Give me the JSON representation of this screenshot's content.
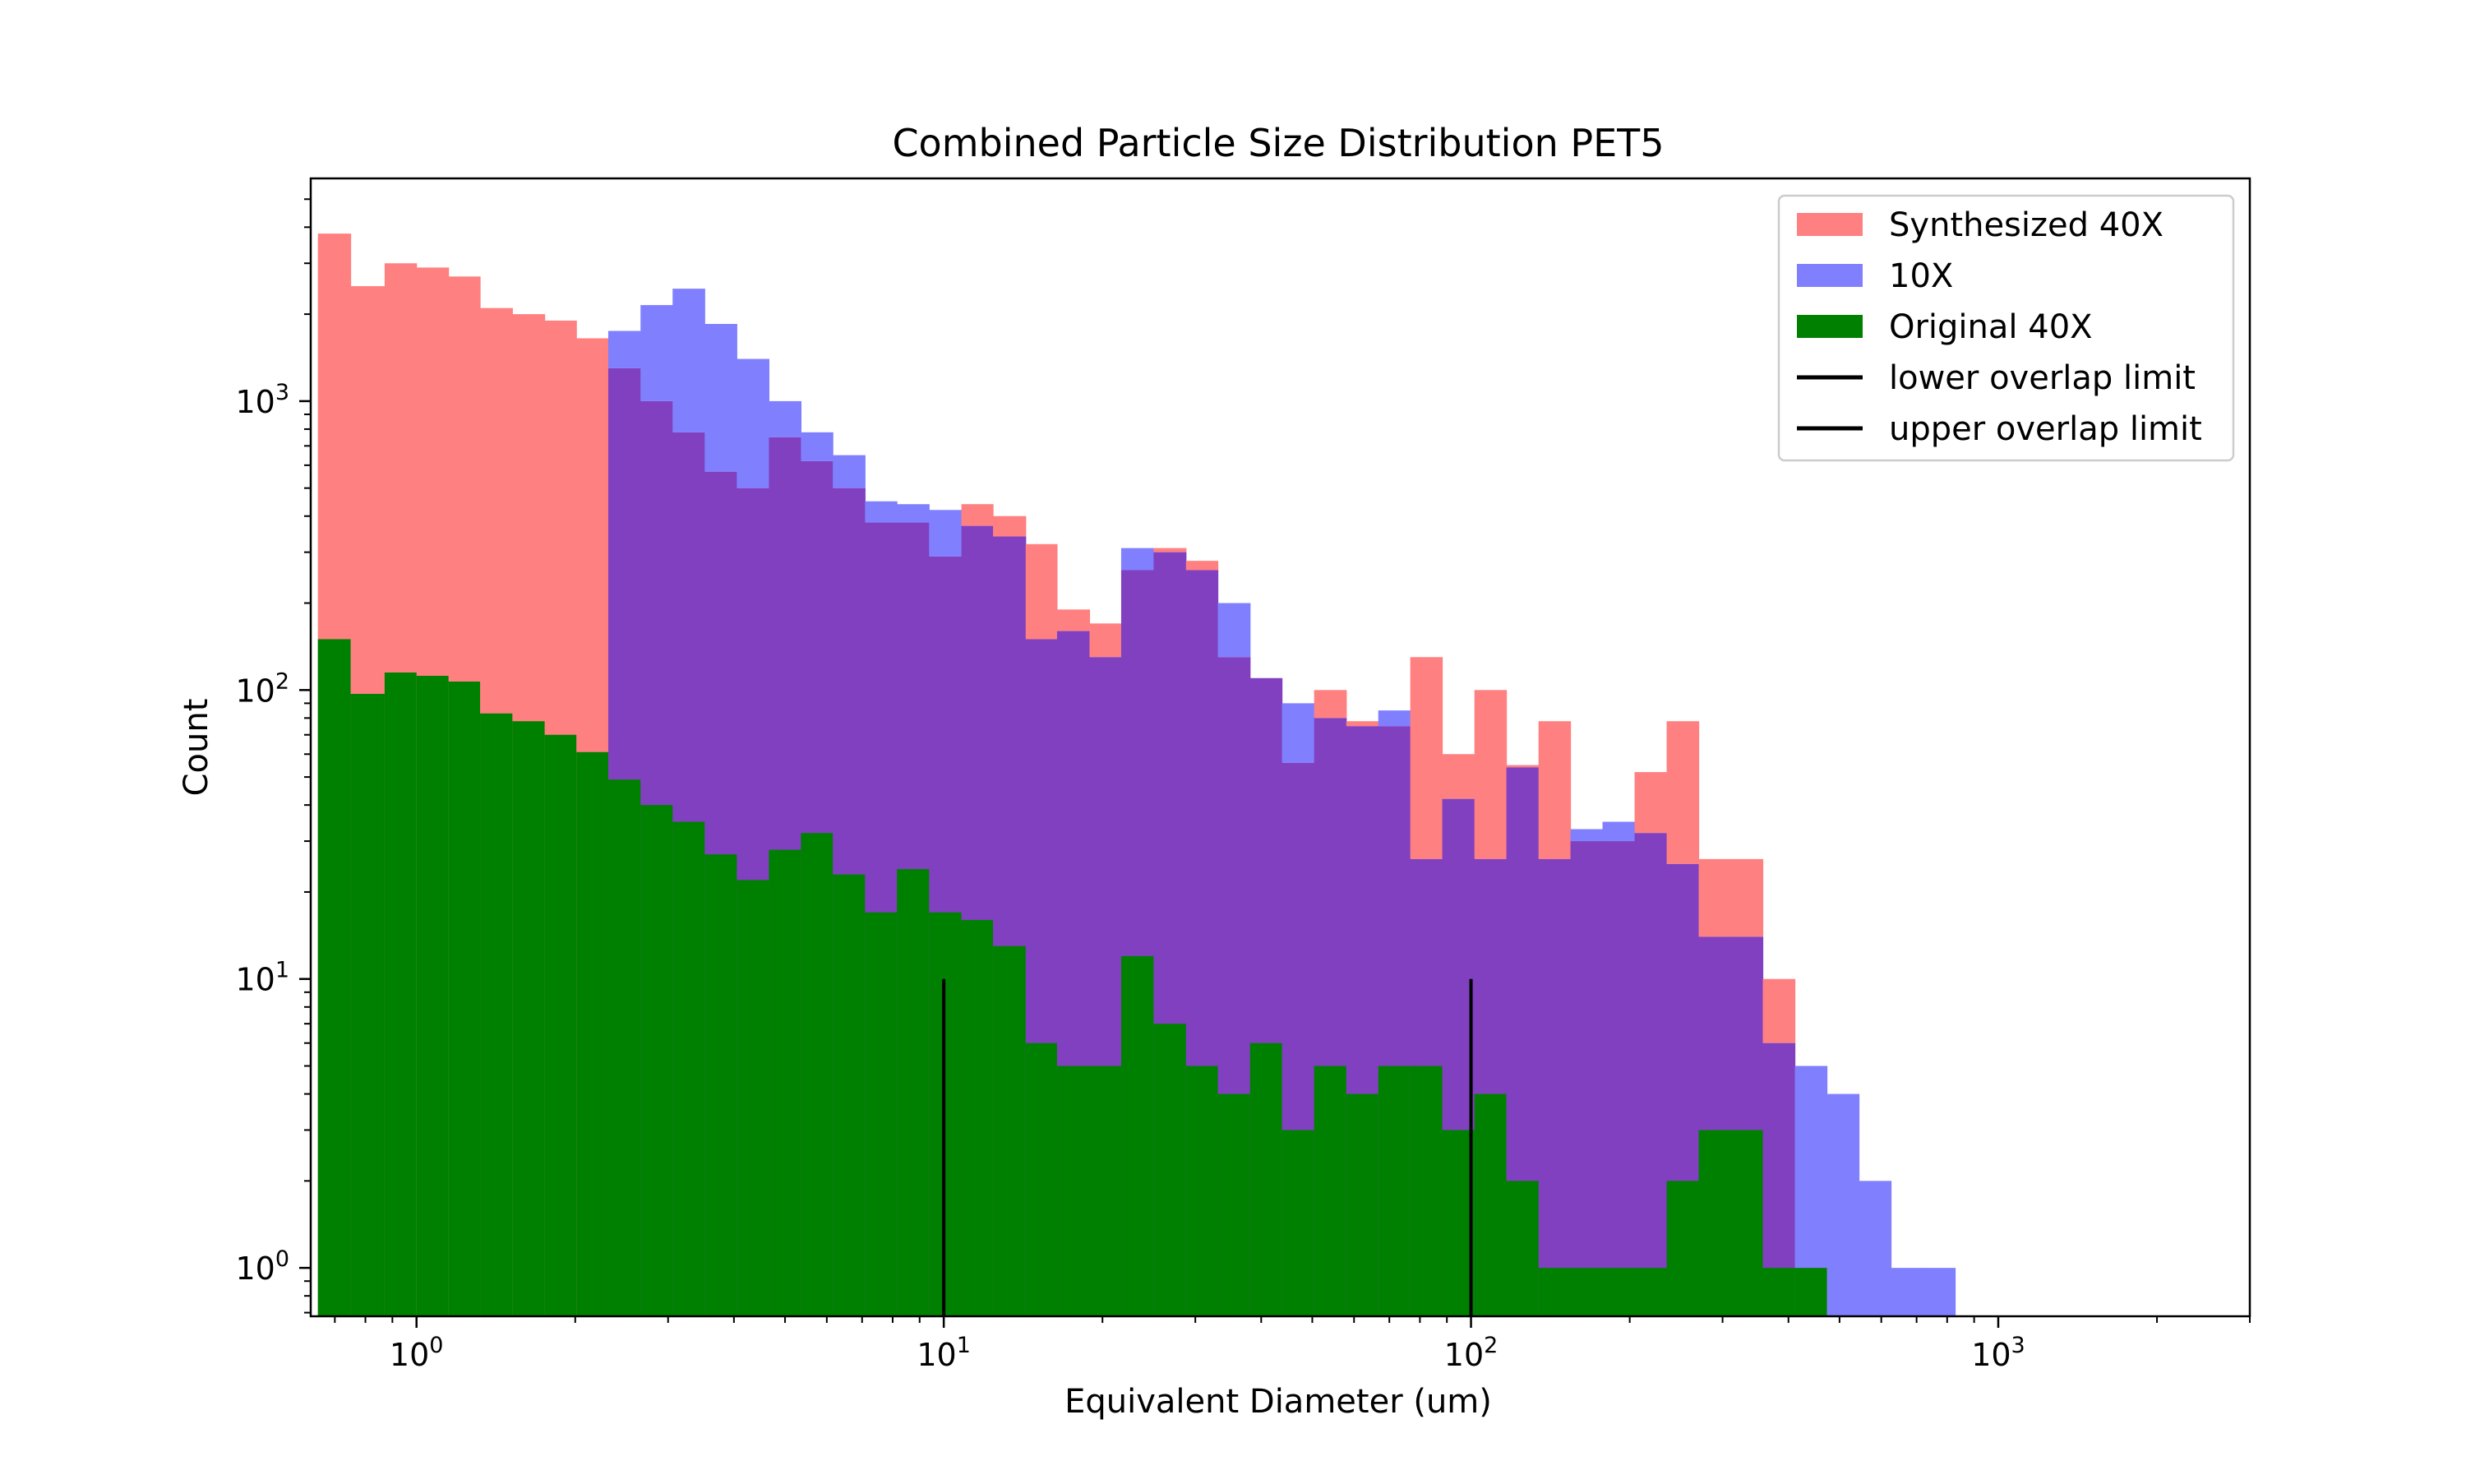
{
  "chart_data": {
    "type": "bar",
    "title": "Combined Particle Size Distribution PET5",
    "xlabel": "Equivalent Diameter (um)",
    "ylabel": "Count",
    "xscale": "log",
    "yscale": "log",
    "xlim": [
      0.63,
      3000
    ],
    "ylim": [
      0.68,
      5900
    ],
    "grid": false,
    "legend_position": "top-right",
    "x_ticks": [
      {
        "value": 1,
        "base": "10",
        "exp": "0"
      },
      {
        "value": 10,
        "base": "10",
        "exp": "1"
      },
      {
        "value": 100,
        "base": "10",
        "exp": "2"
      },
      {
        "value": 1000,
        "base": "10",
        "exp": "3"
      }
    ],
    "y_ticks": [
      {
        "value": 1,
        "base": "10",
        "exp": "0"
      },
      {
        "value": 10,
        "base": "10",
        "exp": "1"
      },
      {
        "value": 100,
        "base": "10",
        "exp": "2"
      },
      {
        "value": 1000,
        "base": "10",
        "exp": "3"
      }
    ],
    "bin_edges": [
      0.65,
      0.75,
      0.87,
      1.0,
      1.15,
      1.32,
      1.52,
      1.75,
      2.01,
      2.31,
      2.66,
      3.06,
      3.52,
      4.05,
      4.66,
      5.36,
      6.16,
      7.09,
      8.15,
      9.38,
      10.8,
      12.4,
      14.3,
      16.4,
      18.9,
      21.7,
      25.0,
      28.8,
      33.1,
      38.1,
      43.8,
      50.4,
      58.0,
      66.7,
      76.7,
      88.2,
      101.5,
      116.7,
      134.3,
      154.4,
      177.6,
      204.3,
      235.0,
      270.3,
      310.9,
      357.6,
      411.4,
      473.2,
      544.3,
      626.1,
      720.2,
      828.4,
      1000.0
    ],
    "series": [
      {
        "name": "Synthesized 40X",
        "color": "#ff8080",
        "values": [
          3800,
          2500,
          3000,
          2900,
          2700,
          2100,
          2000,
          1900,
          1650,
          1300,
          1000,
          780,
          570,
          500,
          750,
          620,
          500,
          380,
          380,
          290,
          440,
          400,
          320,
          190,
          170,
          260,
          310,
          280,
          130,
          110,
          56,
          100,
          78,
          75,
          130,
          60,
          100,
          55,
          78,
          30,
          30,
          52,
          78,
          26,
          26,
          10,
          0,
          0,
          0,
          0,
          0,
          0
        ]
      },
      {
        "name": "10X",
        "color": "#8080ff",
        "values": [
          0,
          0,
          0,
          0,
          0,
          0,
          0,
          0,
          0,
          1750,
          2150,
          2450,
          1850,
          1400,
          1000,
          780,
          650,
          450,
          440,
          420,
          370,
          340,
          150,
          160,
          130,
          310,
          300,
          260,
          200,
          110,
          90,
          80,
          75,
          85,
          26,
          42,
          26,
          54,
          26,
          33,
          35,
          32,
          25,
          14,
          14,
          6,
          5,
          4,
          2,
          1,
          1,
          0
        ]
      },
      {
        "name": "Original 40X",
        "color": "#008000",
        "values": [
          150,
          97,
          115,
          112,
          107,
          83,
          78,
          70,
          61,
          49,
          40,
          35,
          27,
          22,
          28,
          32,
          23,
          17,
          24,
          17,
          16,
          13,
          6,
          5,
          5,
          12,
          7,
          5,
          4,
          6,
          3,
          5,
          4,
          5,
          5,
          3,
          4,
          2,
          1,
          1,
          1,
          1,
          2,
          3,
          3,
          1,
          1,
          0,
          0,
          0,
          0,
          0
        ]
      }
    ],
    "overlay_color": "#8040c0",
    "vlines": [
      {
        "name": "lower overlap limit",
        "x": 10,
        "ymin": 0.68,
        "ymax": 10,
        "color": "#000000"
      },
      {
        "name": "upper overlap limit",
        "x": 100,
        "ymin": 0.68,
        "ymax": 10,
        "color": "#000000"
      }
    ]
  }
}
